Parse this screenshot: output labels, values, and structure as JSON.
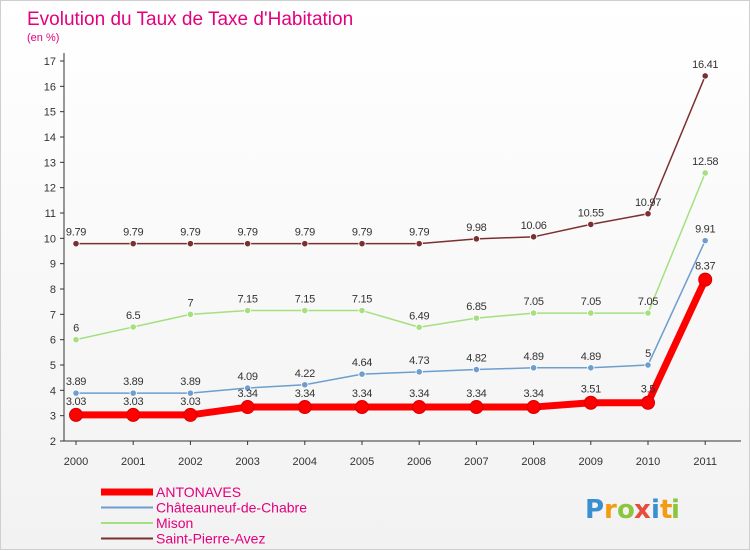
{
  "chart_data": {
    "type": "line",
    "title": "Evolution du Taux de Taxe d'Habitation",
    "subtitle": "(en %)",
    "xlabel": "",
    "ylabel": "",
    "ylim": [
      2,
      17
    ],
    "yticks": [
      2,
      3,
      4,
      5,
      6,
      7,
      8,
      9,
      10,
      11,
      12,
      13,
      14,
      15,
      16,
      17
    ],
    "x": [
      "2000",
      "2001",
      "2002",
      "2003",
      "2004",
      "2005",
      "2006",
      "2007",
      "2008",
      "2009",
      "2010",
      "2011"
    ],
    "grid": false,
    "legend_position": "bottom-left",
    "series": [
      {
        "name": "ANTONAVES",
        "color": "#ff0000",
        "values": [
          3.03,
          3.03,
          3.03,
          3.34,
          3.34,
          3.34,
          3.34,
          3.34,
          3.34,
          3.51,
          3.51,
          8.37
        ],
        "labels": [
          "3.03",
          "3.03",
          "3.03",
          "3.34",
          "3.34",
          "3.34",
          "3.34",
          "3.34",
          "3.34",
          "3.51",
          "3.5",
          "8.37"
        ]
      },
      {
        "name": "Châteauneuf-de-Chabre",
        "color": "#6d9ecf",
        "values": [
          3.89,
          3.89,
          3.89,
          4.09,
          4.22,
          4.64,
          4.73,
          4.82,
          4.89,
          4.89,
          5,
          9.91
        ],
        "labels": [
          "3.89",
          "3.89",
          "3.89",
          "4.09",
          "4.22",
          "4.64",
          "4.73",
          "4.82",
          "4.89",
          "4.89",
          "5",
          "9.91"
        ]
      },
      {
        "name": "Mison",
        "color": "#a4e07f",
        "values": [
          6,
          6.5,
          7,
          7.15,
          7.15,
          7.15,
          6.49,
          6.85,
          7.05,
          7.05,
          7.05,
          12.58
        ],
        "labels": [
          "6",
          "6.5",
          "7",
          "7.15",
          "7.15",
          "7.15",
          "6.49",
          "6.85",
          "7.05",
          "7.05",
          "7.05",
          "12.58"
        ]
      },
      {
        "name": "Saint-Pierre-Avez",
        "color": "#7b3030",
        "values": [
          9.79,
          9.79,
          9.79,
          9.79,
          9.79,
          9.79,
          9.79,
          9.98,
          10.06,
          10.55,
          10.97,
          16.41
        ],
        "labels": [
          "9.79",
          "9.79",
          "9.79",
          "9.79",
          "9.79",
          "9.79",
          "9.79",
          "9.98",
          "10.06",
          "10.55",
          "10.97",
          "16.41"
        ]
      }
    ]
  },
  "logo": {
    "letters": [
      "P",
      "r",
      "o",
      "x",
      "i",
      "t",
      "i"
    ],
    "colors": [
      "#3a8fd1",
      "#f39c12",
      "#8cc63f",
      "#e74c3c",
      "#3a8fd1",
      "#f39c12",
      "#8cc63f"
    ]
  }
}
